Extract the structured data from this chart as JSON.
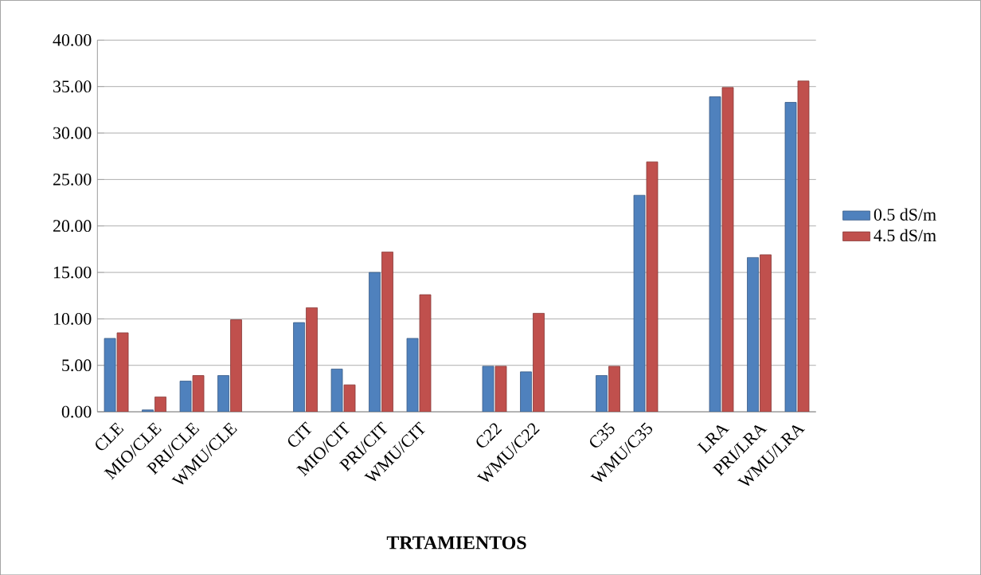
{
  "chart_data": {
    "type": "bar",
    "xlabel": "**TRTAMIENTOS**",
    "categories": [
      "CLE",
      "MIO/CLE",
      "PRI/CLE",
      "WMU/CLE",
      null,
      "CIT",
      "MIO/CIT",
      "PRI/CIT",
      "WMU/CIT",
      null,
      "C22",
      "WMU/C22",
      null,
      "C35",
      "WMU/C35",
      null,
      "LRA",
      "PRI/LRA",
      "WMU/LRA"
    ],
    "series": [
      {
        "name": "0.5 dS/m",
        "color": "#4f81bd",
        "values": [
          7.9,
          0.2,
          3.3,
          3.9,
          null,
          9.6,
          4.6,
          15.0,
          7.9,
          null,
          4.9,
          4.3,
          null,
          3.9,
          23.3,
          null,
          33.9,
          16.6,
          33.3
        ]
      },
      {
        "name": "4.5 dS/m",
        "color": "#c0504d",
        "values": [
          8.5,
          1.6,
          3.9,
          9.9,
          null,
          11.2,
          2.9,
          17.2,
          12.6,
          null,
          4.9,
          10.6,
          null,
          4.9,
          26.9,
          null,
          34.9,
          16.9,
          35.6
        ]
      }
    ],
    "ylim": [
      0,
      40
    ],
    "yticks": [
      {
        "value": 0,
        "label": "0.00"
      },
      {
        "value": 5,
        "label": "5.00"
      },
      {
        "value": 10,
        "label": "10.00"
      },
      {
        "value": 15,
        "label": "15.00"
      },
      {
        "value": 20,
        "label": "20.00"
      },
      {
        "value": 25,
        "label": "25.00"
      },
      {
        "value": 30,
        "label": "30.00"
      },
      {
        "value": 35,
        "label": "35.00"
      },
      {
        "value": 40,
        "label": "40.00"
      }
    ],
    "grid": "y",
    "legend": "right"
  }
}
